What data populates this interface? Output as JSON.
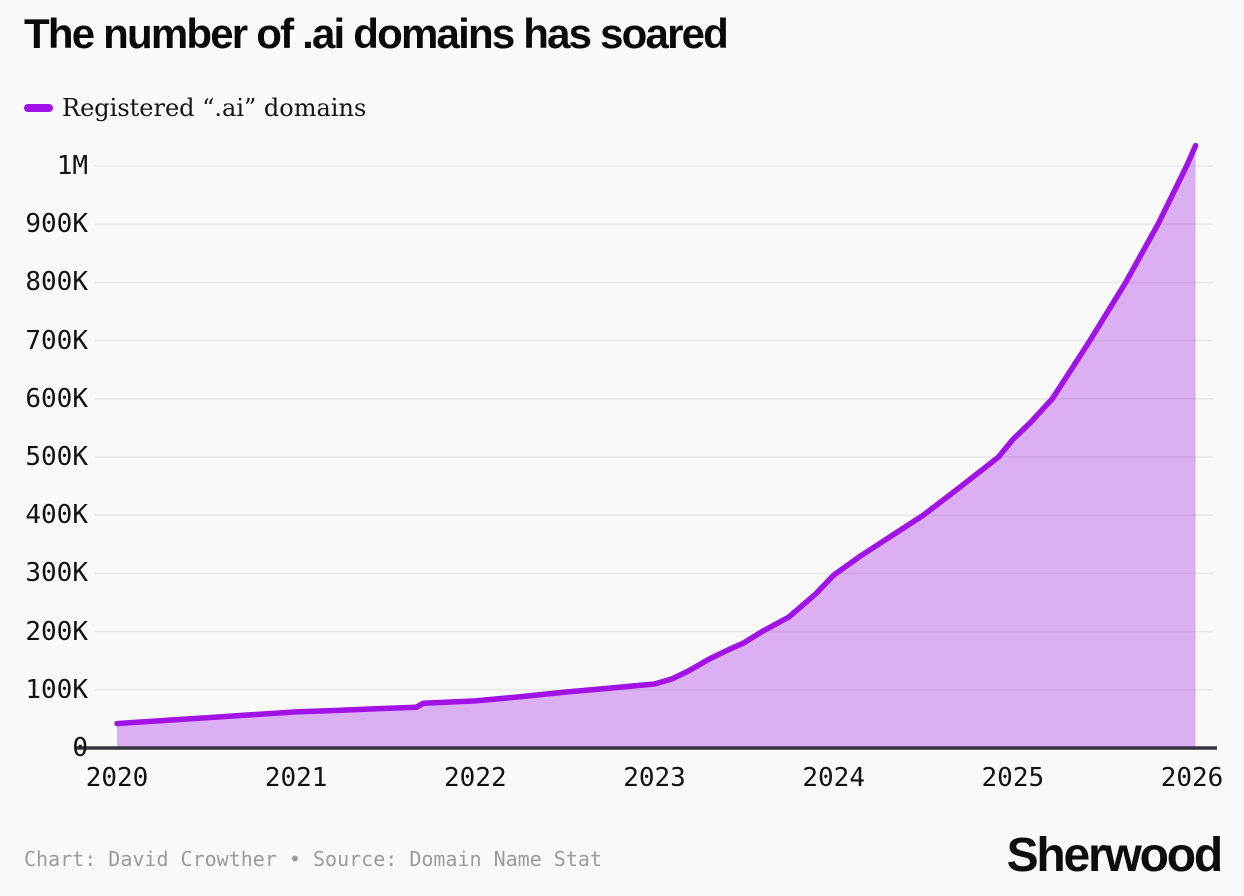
{
  "title": "The number of .ai domains has soared",
  "legend": {
    "label": "Registered “.ai” domains"
  },
  "footer": {
    "credit": "Chart: David Crowther • Source: Domain Name Stat",
    "brand": "Sherwood"
  },
  "colors": {
    "background": "#f9f9f9",
    "line": "#a012e6",
    "fill": "rgba(160,18,230,0.32)",
    "gridline": "#e8e8e8",
    "axis": "#37343d",
    "tick_text": "#121212",
    "credit_text": "#9b9b9b",
    "title_text": "#0a0a0a"
  },
  "chart_data": {
    "type": "area",
    "title": "The number of .ai domains has soared",
    "xlabel": "",
    "ylabel": "",
    "grid": "horizontal",
    "legend_position": "top-left",
    "xlim": [
      2020,
      2026.1
    ],
    "ylim": [
      0,
      1045000
    ],
    "x_ticks": {
      "labels": [
        "2020",
        "2021",
        "2022",
        "2023",
        "2024",
        "2025",
        "2026"
      ],
      "values": [
        2020,
        2021,
        2022,
        2023,
        2024,
        2025,
        2026
      ]
    },
    "y_ticks": {
      "labels": [
        "0",
        "100K",
        "200K",
        "300K",
        "400K",
        "500K",
        "600K",
        "700K",
        "800K",
        "900K",
        "1M"
      ],
      "values": [
        0,
        100000,
        200000,
        300000,
        400000,
        500000,
        600000,
        700000,
        800000,
        900000,
        1000000
      ]
    },
    "series": [
      {
        "name": "Registered “.ai” domains",
        "x": [
          2020.0,
          2020.25,
          2020.5,
          2020.75,
          2021.0,
          2021.25,
          2021.5,
          2021.67,
          2021.71,
          2022.0,
          2022.25,
          2022.5,
          2022.75,
          2023.0,
          2023.1,
          2023.2,
          2023.3,
          2023.4,
          2023.5,
          2023.6,
          2023.75,
          2023.9,
          2024.0,
          2024.15,
          2024.3,
          2024.5,
          2024.7,
          2024.92,
          2025.0,
          2025.1,
          2025.22,
          2025.43,
          2025.63,
          2025.81,
          2025.97,
          2026.02
        ],
        "values": [
          42000,
          47000,
          52000,
          57000,
          62000,
          65000,
          68000,
          70000,
          77000,
          81000,
          88000,
          96000,
          103000,
          110000,
          119000,
          134000,
          152000,
          167000,
          181000,
          200000,
          225000,
          265000,
          297000,
          330000,
          360000,
          400000,
          447000,
          500000,
          530000,
          560000,
          600000,
          700000,
          800000,
          900000,
          1000000,
          1035000
        ]
      }
    ]
  }
}
